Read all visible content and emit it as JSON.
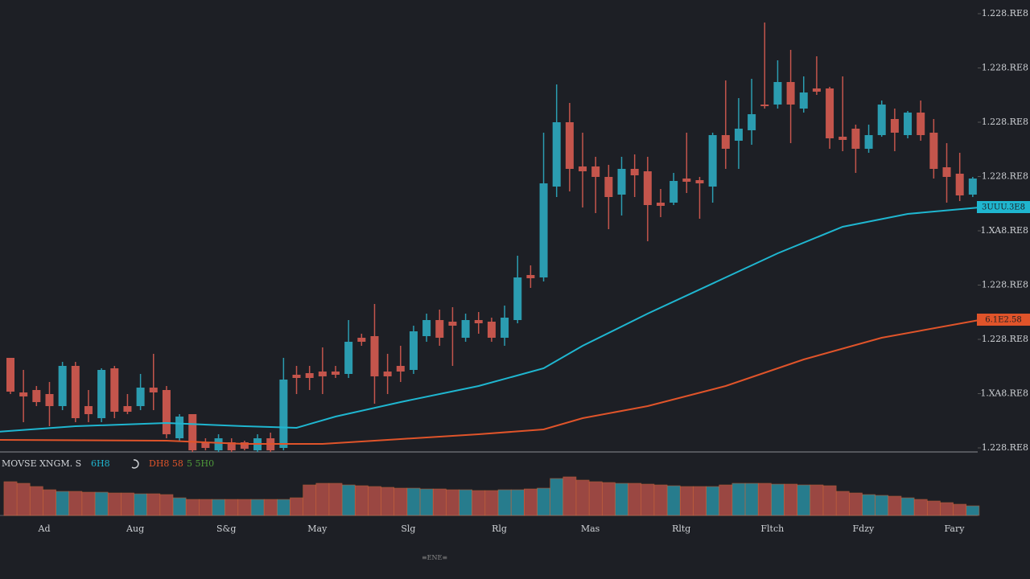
{
  "chart_data": [
    {
      "type": "candlestick",
      "open": [
        112,
        69,
        72,
        67,
        52,
        102,
        52,
        37,
        99,
        52,
        52,
        75,
        72,
        12,
        42,
        7,
        -3,
        7,
        7,
        -3,
        12,
        0,
        91,
        93,
        95,
        95,
        92,
        137,
        139,
        95,
        102,
        97,
        139,
        159,
        157,
        137,
        159,
        157,
        137,
        159,
        215,
        212,
        325,
        405,
        350,
        350,
        337,
        315,
        347,
        344,
        305,
        305,
        335,
        333,
        325,
        389,
        382,
        395,
        427,
        427,
        455,
        422,
        447,
        447,
        387,
        397,
        372,
        389,
        409,
        389,
        417,
        392,
        349,
        341,
        315
      ],
      "high": [
        112,
        97,
        77,
        82,
        107,
        107,
        72,
        99,
        102,
        67,
        92,
        117,
        77,
        42,
        42,
        12,
        17,
        12,
        9,
        17,
        19,
        112,
        102,
        102,
        125,
        102,
        159,
        142,
        179,
        117,
        127,
        152,
        167,
        172,
        175,
        167,
        169,
        162,
        177,
        239,
        227,
        392,
        452,
        429,
        392,
        362,
        352,
        362,
        365,
        362,
        322,
        342,
        392,
        337,
        392,
        457,
        435,
        459,
        529,
        482,
        495,
        462,
        487,
        449,
        462,
        402,
        402,
        432,
        422,
        419,
        432,
        409,
        379,
        367,
        337
      ],
      "low": [
        67,
        32,
        52,
        27,
        47,
        32,
        32,
        32,
        37,
        42,
        47,
        47,
        12,
        9,
        -5,
        -3,
        -5,
        -5,
        -3,
        -5,
        -5,
        -3,
        67,
        72,
        67,
        87,
        87,
        127,
        55,
        67,
        82,
        92,
        132,
        127,
        102,
        132,
        142,
        132,
        127,
        155,
        199,
        207,
        312,
        319,
        299,
        292,
        272,
        289,
        312,
        257,
        287,
        302,
        317,
        285,
        305,
        347,
        347,
        377,
        422,
        422,
        379,
        417,
        439,
        372,
        369,
        342,
        367,
        387,
        369,
        385,
        382,
        335,
        305,
        307,
        312
      ],
      "close": [
        70,
        64,
        57,
        52,
        102,
        37,
        42,
        97,
        45,
        45,
        75,
        69,
        17,
        39,
        -3,
        0,
        12,
        -3,
        -1,
        12,
        -3,
        85,
        87,
        87,
        89,
        91,
        132,
        132,
        89,
        89,
        95,
        145,
        159,
        137,
        152,
        159,
        155,
        137,
        162,
        212,
        211,
        329,
        405,
        347,
        344,
        337,
        312,
        347,
        339,
        302,
        301,
        332,
        331,
        329,
        389,
        372,
        397,
        415,
        425,
        455,
        427,
        442,
        443,
        385,
        383,
        372,
        389,
        427,
        392,
        417,
        389,
        347,
        337,
        314,
        335
      ],
      "up_color": "#2b9cb0",
      "down_color": "#c4554c",
      "series": [
        {
          "name": "6H8",
          "color": "#1fb6d0",
          "x": [
            -1,
            5,
            12,
            18,
            22,
            25,
            30,
            36,
            41,
            44,
            49,
            55,
            59,
            64,
            69,
            74.5
          ],
          "values": [
            20,
            27,
            31,
            27,
            25,
            39,
            57,
            77,
            99,
            127,
            167,
            212,
            242,
            275,
            291,
            299
          ],
          "last_label": "3UUU.3E8"
        },
        {
          "name": "DH8 58",
          "color": "#e0542a",
          "x": [
            -1,
            12,
            18,
            24,
            30,
            36,
            41,
            44,
            49,
            55,
            61,
            67,
            74.5
          ],
          "values": [
            10,
            9,
            5,
            5,
            11,
            17,
            23,
            37,
            52,
            77,
            110,
            137,
            159
          ],
          "last_label": "6.1E2.58"
        }
      ],
      "indicator_label": "MOVSE XNGM. S",
      "extra_legend": {
        "text": "5 5H0",
        "color": "#4f9a3a"
      },
      "ylim": [
        0,
        557
      ],
      "yticks": [
        {
          "value": 0,
          "label": "1.228.RE8"
        },
        {
          "value": 67.5,
          "label": "1.XA8.RE8"
        },
        {
          "value": 135,
          "label": "1.228.RE8"
        },
        {
          "value": 202.5,
          "label": "1.228.RE8"
        },
        {
          "value": 270,
          "label": "1.XA8.RE8"
        },
        {
          "value": 337.5,
          "label": "1.228.RE8"
        },
        {
          "value": 405,
          "label": "1.228.RE8"
        },
        {
          "value": 472.5,
          "label": "1.228.RE8"
        },
        {
          "value": 540,
          "label": "1.228.RE8"
        }
      ],
      "x_labels": [
        "Ad",
        "Aug",
        "S&g",
        "May",
        "Slg",
        "Rlg",
        "Mas",
        "Rltg",
        "Fltch",
        "Fdzy",
        "Fary"
      ]
    },
    {
      "type": "volume",
      "values": [
        42,
        40,
        36,
        32,
        30,
        30,
        29,
        29,
        28,
        28,
        27,
        27,
        26,
        22,
        20,
        20,
        20,
        20,
        20,
        20,
        20,
        20,
        22,
        38,
        40,
        40,
        38,
        37,
        36,
        35,
        34,
        34,
        33,
        33,
        32,
        32,
        31,
        31,
        32,
        32,
        33,
        34,
        46,
        48,
        44,
        42,
        41,
        40,
        40,
        39,
        38,
        37,
        36,
        36,
        36,
        38,
        40,
        40,
        40,
        39,
        39,
        38,
        38,
        37,
        30,
        28,
        26,
        25,
        24,
        22,
        20,
        18,
        16,
        14,
        12
      ],
      "ylim": [
        0,
        50
      ],
      "footer": "≡ENE≡"
    }
  ]
}
